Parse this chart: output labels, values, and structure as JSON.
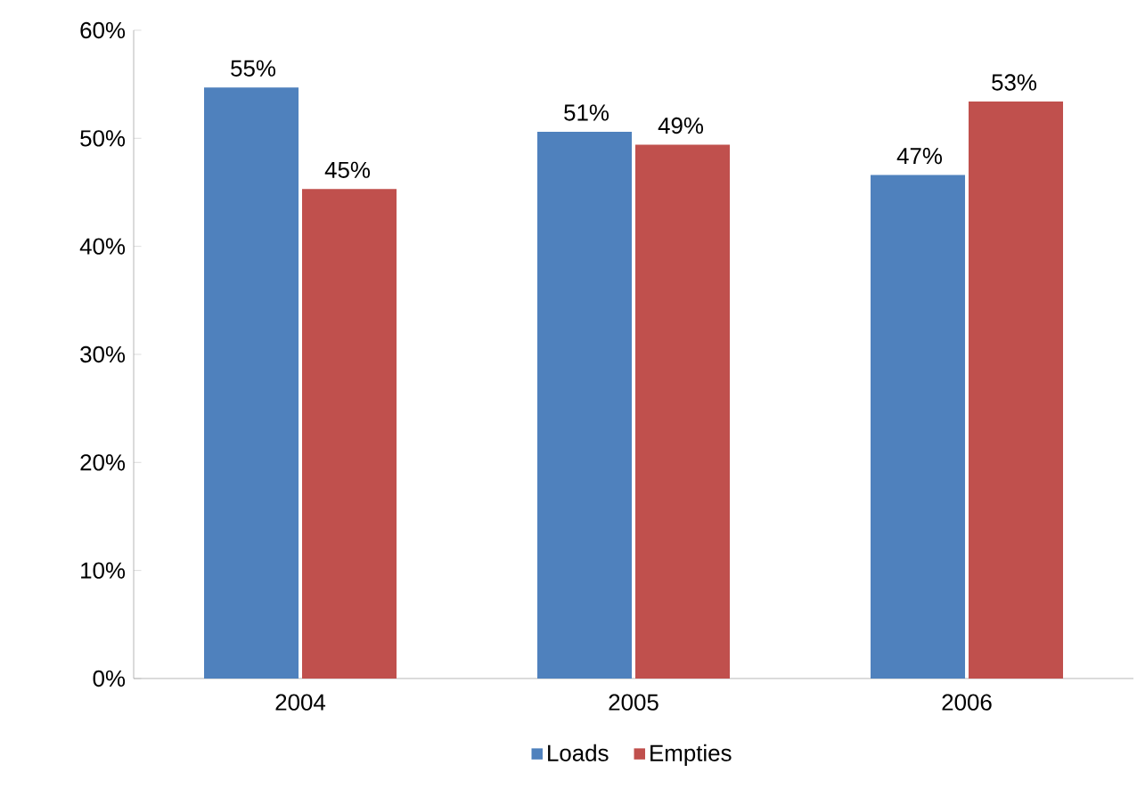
{
  "chart_data": {
    "type": "bar",
    "categories": [
      "2004",
      "2005",
      "2006"
    ],
    "series": [
      {
        "name": "Loads",
        "color": "#4f81bd",
        "values": [
          54.7,
          50.6,
          46.6
        ],
        "value_labels": [
          "55%",
          "51%",
          "47%"
        ]
      },
      {
        "name": "Empties",
        "color": "#c0504d",
        "values": [
          45.3,
          49.4,
          53.4
        ],
        "value_labels": [
          "45%",
          "49%",
          "53%"
        ]
      }
    ],
    "ylim": [
      0,
      60
    ],
    "yticks": [
      {
        "value": 0,
        "label": "0%"
      },
      {
        "value": 10,
        "label": "10%"
      },
      {
        "value": 20,
        "label": "20%"
      },
      {
        "value": 30,
        "label": "30%"
      },
      {
        "value": 40,
        "label": "40%"
      },
      {
        "value": 50,
        "label": "50%"
      },
      {
        "value": 60,
        "label": "60%"
      }
    ],
    "grid": false,
    "legend": "bottom"
  }
}
